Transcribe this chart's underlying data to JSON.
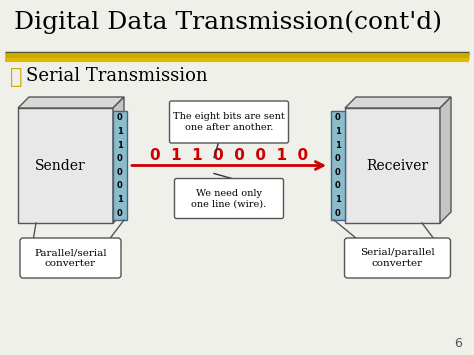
{
  "title": "Digital Data Transmission(cont'd)",
  "subtitle_symbol": "␸",
  "subtitle": "Serial Transmission",
  "bg_color": "#f0f0eb",
  "title_color": "#000000",
  "subtitle_color": "#ccaa00",
  "title_fontsize": 18,
  "subtitle_fontsize": 13,
  "bits_vertical": [
    "0",
    "1",
    "1",
    "0",
    "0",
    "0",
    "1",
    "0"
  ],
  "bits_horizontal": "0  1  1  0  0  0  1  0",
  "sender_label": "Sender",
  "receiver_label": "Receiver",
  "left_converter": "Parallel/serial\nconverter",
  "right_converter": "Serial/parallel\nconverter",
  "callout_top": "The eight bits are sent\none after another.",
  "callout_bottom": "We need only\none line (wire).",
  "arrow_color": "#cc0000",
  "bits_color": "#cc0000",
  "converter_strip_color": "#8bbccc",
  "box_facecolor": "#e8e8e8",
  "box_top_color": "#d0d0d0",
  "box_side_color": "#c0c0c0",
  "line_color": "#555555",
  "page_number": "6",
  "gold_line_color": "#ccaa00",
  "dark_line_color": "#555533"
}
